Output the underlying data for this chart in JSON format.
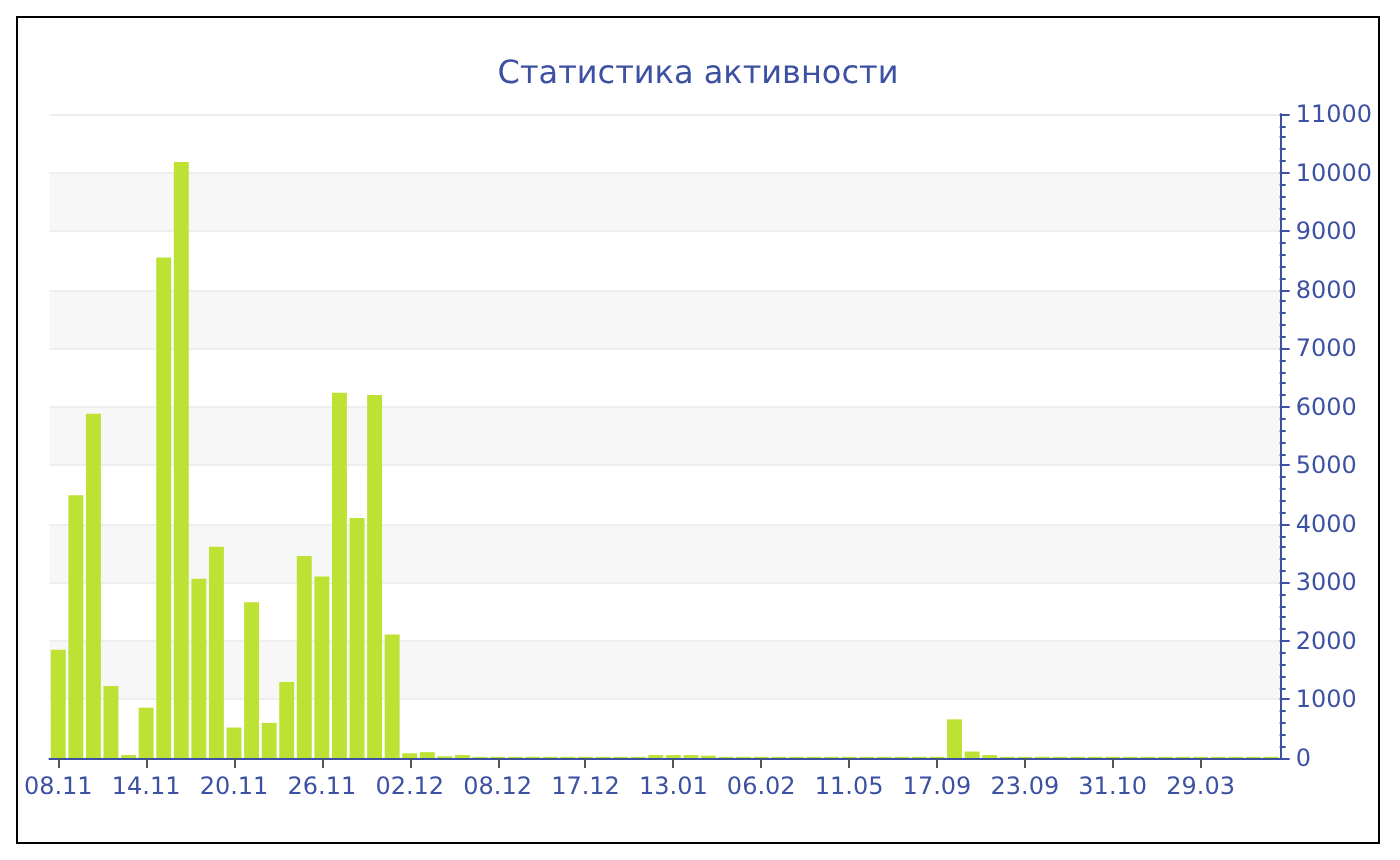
{
  "chart_data": {
    "type": "bar",
    "title": "Статистика активности",
    "categories": [
      "08.11",
      null,
      null,
      null,
      null,
      "14.11",
      null,
      null,
      null,
      null,
      "20.11",
      null,
      null,
      null,
      null,
      "26.11",
      null,
      null,
      null,
      null,
      "02.12",
      null,
      null,
      null,
      null,
      "08.12",
      null,
      null,
      null,
      null,
      "17.12",
      null,
      null,
      null,
      null,
      "13.01",
      null,
      null,
      null,
      null,
      "06.02",
      null,
      null,
      null,
      null,
      "11.05",
      null,
      null,
      null,
      null,
      "17.09",
      null,
      null,
      null,
      null,
      "23.09",
      null,
      null,
      null,
      null,
      "31.10",
      null,
      null,
      null,
      null,
      "29.03",
      null,
      null,
      null,
      null
    ],
    "values": [
      1850,
      4490,
      5880,
      1230,
      50,
      860,
      8550,
      10180,
      3060,
      3610,
      520,
      2660,
      600,
      1300,
      3450,
      3100,
      6240,
      4100,
      6200,
      2110,
      80,
      100,
      30,
      50,
      20,
      20,
      20,
      20,
      20,
      20,
      20,
      20,
      20,
      20,
      50,
      50,
      50,
      40,
      20,
      20,
      20,
      20,
      20,
      20,
      20,
      20,
      20,
      20,
      20,
      20,
      20,
      660,
      110,
      50,
      20,
      20,
      20,
      20,
      20,
      20,
      20,
      20,
      20,
      20,
      20,
      20,
      20,
      20,
      20,
      20
    ],
    "color": "#bde233",
    "ylim": [
      0,
      11000
    ],
    "yticks": [
      0,
      1000,
      2000,
      3000,
      4000,
      5000,
      6000,
      7000,
      8000,
      9000,
      10000,
      11000
    ],
    "grid": "y"
  }
}
